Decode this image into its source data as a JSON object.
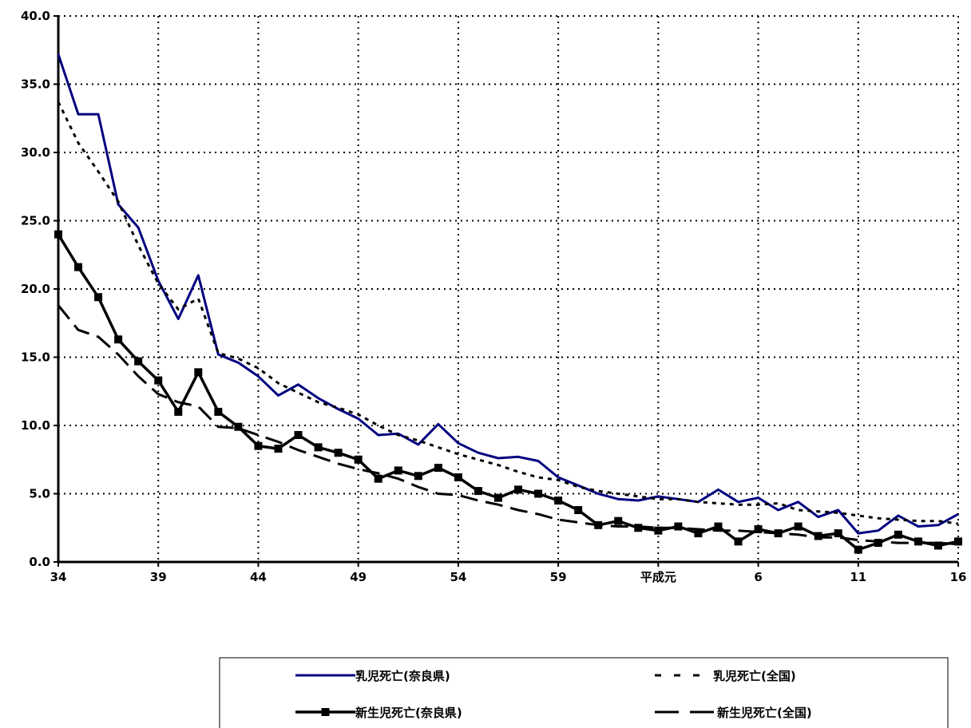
{
  "chart_data": {
    "type": "line",
    "title": "",
    "xlabel": "",
    "ylabel": "",
    "ylim": [
      0,
      40
    ],
    "yticks": [
      "0.0",
      "5.0",
      "10.0",
      "15.0",
      "20.0",
      "25.0",
      "30.0",
      "35.0",
      "40.0"
    ],
    "xtick_labels": [
      "34",
      "39",
      "44",
      "49",
      "54",
      "59",
      "平成元",
      "6",
      "11",
      "16"
    ],
    "x": [
      "34",
      "35",
      "36",
      "37",
      "38",
      "39",
      "40",
      "41",
      "42",
      "43",
      "44",
      "45",
      "46",
      "47",
      "48",
      "49",
      "50",
      "51",
      "52",
      "53",
      "54",
      "55",
      "56",
      "57",
      "58",
      "59",
      "60",
      "61",
      "62",
      "63",
      "平成元",
      "2",
      "3",
      "4",
      "5",
      "6",
      "7",
      "8",
      "9",
      "10",
      "11",
      "12",
      "13",
      "14",
      "15",
      "16"
    ],
    "grid": "dotted",
    "legend_position": "bottom",
    "series": [
      {
        "name": "乳児死亡(奈良県)",
        "color": "#000080",
        "style": "solid",
        "values": [
          37.2,
          32.8,
          32.8,
          26.2,
          24.5,
          20.6,
          17.8,
          21.0,
          15.2,
          14.6,
          13.6,
          12.2,
          13.0,
          12.0,
          11.2,
          10.5,
          9.3,
          9.4,
          8.6,
          10.1,
          8.7,
          8.0,
          7.6,
          7.7,
          7.4,
          6.2,
          5.6,
          5.0,
          4.6,
          4.5,
          4.8,
          4.6,
          4.4,
          5.3,
          4.4,
          4.7,
          3.8,
          4.4,
          3.3,
          3.8,
          2.1,
          2.3,
          3.4,
          2.6,
          2.7,
          3.5
        ]
      },
      {
        "name": "乳児死亡(全国)",
        "color": "#000000",
        "style": "dotted",
        "values": [
          33.7,
          30.7,
          28.6,
          26.4,
          23.2,
          20.4,
          18.5,
          19.3,
          15.3,
          14.9,
          14.2,
          13.1,
          12.4,
          11.7,
          11.3,
          10.8,
          10.0,
          9.3,
          8.9,
          8.4,
          7.9,
          7.5,
          7.1,
          6.6,
          6.2,
          6.0,
          5.5,
          5.2,
          5.0,
          4.8,
          4.6,
          4.6,
          4.4,
          4.3,
          4.2,
          4.2,
          4.3,
          3.8,
          3.7,
          3.6,
          3.4,
          3.2,
          3.1,
          3.0,
          3.0,
          2.8
        ]
      },
      {
        "name": "新生児死亡(奈良県)",
        "color": "#000000",
        "style": "solid-marker",
        "values": [
          24.0,
          21.6,
          19.4,
          16.3,
          14.7,
          13.3,
          11.0,
          13.9,
          11.0,
          9.9,
          8.5,
          8.3,
          9.3,
          8.4,
          8.0,
          7.5,
          6.1,
          6.7,
          6.3,
          6.9,
          6.2,
          5.2,
          4.7,
          5.3,
          5.0,
          4.5,
          3.8,
          2.7,
          3.0,
          2.5,
          2.3,
          2.6,
          2.1,
          2.6,
          1.5,
          2.4,
          2.1,
          2.6,
          1.9,
          2.1,
          0.9,
          1.4,
          2.0,
          1.5,
          1.2,
          1.5
        ]
      },
      {
        "name": "新生児死亡(全国)",
        "color": "#000000",
        "style": "dashed",
        "values": [
          18.8,
          17.0,
          16.5,
          15.2,
          13.6,
          12.3,
          11.7,
          11.4,
          9.9,
          9.8,
          9.3,
          8.8,
          8.2,
          7.7,
          7.2,
          6.8,
          6.5,
          6.1,
          5.5,
          5.0,
          4.9,
          4.5,
          4.2,
          3.8,
          3.5,
          3.1,
          2.9,
          2.7,
          2.6,
          2.6,
          2.5,
          2.5,
          2.4,
          2.3,
          2.3,
          2.2,
          2.1,
          2.0,
          1.8,
          1.8,
          1.6,
          1.5,
          1.4,
          1.4,
          1.4,
          1.3
        ]
      }
    ]
  }
}
